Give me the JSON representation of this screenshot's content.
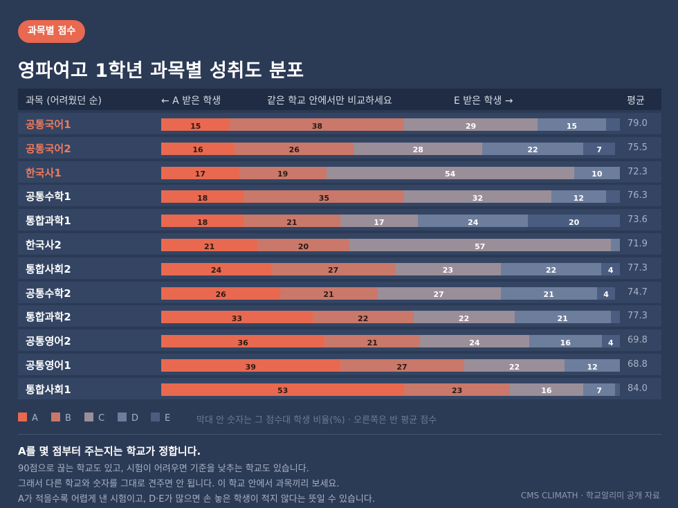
{
  "badge": "과목별 점수",
  "title": "영파여고 1학년 과목별 성취도 분포",
  "header": {
    "subject": "과목 (어려웠던 순)",
    "left": "← A 받은 학생",
    "middle": "같은 학교 안에서만 비교하세요",
    "right": "E 받은 학생 →",
    "avg": "평균"
  },
  "colors": {
    "A": "#e8694f",
    "B": "#c9786a",
    "C": "#9a8e99",
    "D": "#6d7d9c",
    "E": "#4a5d80",
    "highlight": "#f07a5e"
  },
  "chart_data": {
    "type": "bar",
    "stacked": true,
    "orientation": "horizontal",
    "grades": [
      "A",
      "B",
      "C",
      "D",
      "E"
    ],
    "rows": [
      {
        "subject": "공통국어1",
        "highlight": true,
        "values": [
          15,
          38,
          29,
          15,
          3
        ],
        "avg": "79.0"
      },
      {
        "subject": "공통국어2",
        "highlight": true,
        "values": [
          16,
          26,
          28,
          22,
          7
        ],
        "avg": "75.5"
      },
      {
        "subject": "한국사1",
        "highlight": true,
        "values": [
          17,
          19,
          54,
          10,
          0
        ],
        "avg": "72.3"
      },
      {
        "subject": "공통수학1",
        "highlight": false,
        "values": [
          18,
          35,
          32,
          12,
          3
        ],
        "avg": "76.3"
      },
      {
        "subject": "통합과학1",
        "highlight": false,
        "values": [
          18,
          21,
          17,
          24,
          20
        ],
        "avg": "73.6"
      },
      {
        "subject": "한국사2",
        "highlight": false,
        "values": [
          21,
          20,
          57,
          2,
          0
        ],
        "avg": "71.9"
      },
      {
        "subject": "통합사회2",
        "highlight": false,
        "values": [
          24,
          27,
          23,
          22,
          4
        ],
        "avg": "77.3"
      },
      {
        "subject": "공통수학2",
        "highlight": false,
        "values": [
          26,
          21,
          27,
          21,
          4
        ],
        "avg": "74.7"
      },
      {
        "subject": "통합과학2",
        "highlight": false,
        "values": [
          33,
          22,
          22,
          21,
          2
        ],
        "avg": "77.3"
      },
      {
        "subject": "공통영어2",
        "highlight": false,
        "values": [
          36,
          21,
          24,
          16,
          4
        ],
        "avg": "69.8"
      },
      {
        "subject": "공통영어1",
        "highlight": false,
        "values": [
          39,
          27,
          22,
          12,
          0
        ],
        "avg": "68.8"
      },
      {
        "subject": "통합사회1",
        "highlight": false,
        "values": [
          53,
          23,
          16,
          7,
          1
        ],
        "avg": "84.0"
      }
    ],
    "xlim": [
      0,
      100
    ]
  },
  "legend": {
    "items": [
      "A",
      "B",
      "C",
      "D",
      "E"
    ],
    "note": "막대 안 숫자는 그 점수대 학생 비율(%)  ·  오른쪽은 반 평균 점수"
  },
  "footer": {
    "title": "A를 몇 점부터 주는지는 학교가 정합니다.",
    "lines": [
      "90점으로 끊는 학교도 있고, 시험이 어려우면 기준을 낮추는 학교도 있습니다.",
      "그래서 다른 학교와 숫자를 그대로 견주면 안 됩니다. 이 학교 안에서 과목끼리 보세요.",
      "A가 적을수록 어렵게 낸 시험이고, D·E가 많으면 손 놓은 학생이 적지 않다는 뜻일 수 있습니다."
    ],
    "source": "CMS CLIMATH · 학교알리미 공개 자료"
  }
}
